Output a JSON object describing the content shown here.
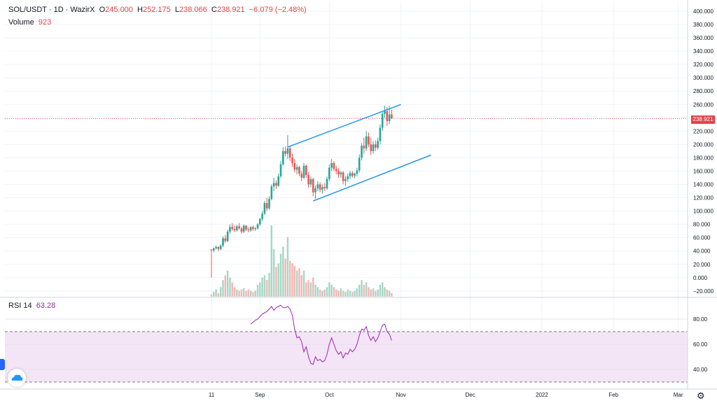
{
  "header": {
    "symbol": "SOL/USDT · 1D · WazirX",
    "open_label": "O",
    "open": "245.000",
    "high_label": "H",
    "high": "252.175",
    "low_label": "L",
    "low": "238.066",
    "close_label": "C",
    "close": "238.921",
    "change": "−6.079 (−2.48%)",
    "volume_label": "Volume",
    "volume": "923"
  },
  "rsi_pane": {
    "label": "RSI 14",
    "value": "63.28"
  },
  "last_price_tag": "238.921",
  "colors": {
    "up": "#26a69a",
    "down": "#ef5350",
    "trend": "#2196f3",
    "rsi": "#9c27b0",
    "rsi_band": "#f3e5f5",
    "price_line": "#ef5350"
  },
  "icons": {
    "logo": "tradingview-cloud-icon",
    "settings": "gear-icon",
    "panel_toggle": "side-panel-toggle-icon"
  },
  "chart_data": [
    {
      "type": "candlestick",
      "title": "SOL/USDT · 1D · WazirX",
      "y_ticks": [
        "400.000",
        "380.000",
        "360.000",
        "340.000",
        "320.000",
        "300.000",
        "280.000",
        "260.000",
        "240.000",
        "220.000",
        "200.000",
        "180.000",
        "160.000",
        "140.000",
        "120.000",
        "100.000",
        "80.000",
        "60.000",
        "40.000",
        "20.000",
        "0.000",
        "−20.000"
      ],
      "x_ticks": [
        "11",
        "Sep",
        "Oct",
        "Nov",
        "Dec",
        "2022",
        "Feb",
        "Mar"
      ],
      "ylim": [
        -22,
        400
      ],
      "x_tick_days": [
        0,
        21,
        51,
        82,
        112,
        143,
        174,
        202
      ],
      "last_price": 238.921,
      "ohlc": [
        [
          0,
          42,
          43,
          0,
          41
        ],
        [
          1,
          41,
          45,
          38,
          44
        ],
        [
          2,
          44,
          48,
          42,
          46
        ],
        [
          3,
          46,
          47,
          40,
          43
        ],
        [
          4,
          43,
          50,
          41,
          48
        ],
        [
          5,
          48,
          62,
          46,
          59
        ],
        [
          6,
          59,
          64,
          52,
          55
        ],
        [
          7,
          55,
          72,
          53,
          69
        ],
        [
          8,
          69,
          80,
          66,
          76
        ],
        [
          9,
          76,
          82,
          70,
          73
        ],
        [
          10,
          73,
          78,
          68,
          71
        ],
        [
          11,
          71,
          79,
          69,
          77
        ],
        [
          12,
          77,
          82,
          72,
          74
        ],
        [
          13,
          74,
          76,
          66,
          69
        ],
        [
          14,
          69,
          80,
          67,
          78
        ],
        [
          15,
          78,
          79,
          70,
          72
        ],
        [
          16,
          72,
          75,
          68,
          71
        ],
        [
          17,
          71,
          77,
          69,
          76
        ],
        [
          18,
          76,
          78,
          70,
          73
        ],
        [
          19,
          73,
          76,
          70,
          74
        ],
        [
          20,
          74,
          82,
          72,
          80
        ],
        [
          21,
          80,
          90,
          78,
          88
        ],
        [
          22,
          88,
          100,
          85,
          96
        ],
        [
          23,
          96,
          115,
          94,
          112
        ],
        [
          24,
          112,
          120,
          100,
          104
        ],
        [
          25,
          104,
          122,
          102,
          118
        ],
        [
          26,
          118,
          140,
          116,
          137
        ],
        [
          27,
          137,
          150,
          130,
          142
        ],
        [
          28,
          142,
          146,
          133,
          138
        ],
        [
          29,
          138,
          156,
          136,
          152
        ],
        [
          30,
          152,
          175,
          150,
          170
        ],
        [
          31,
          170,
          196,
          168,
          190
        ],
        [
          32,
          190,
          197,
          182,
          186
        ],
        [
          33,
          186,
          214,
          178,
          194
        ],
        [
          34,
          194,
          198,
          175,
          180
        ],
        [
          35,
          180,
          186,
          166,
          172
        ],
        [
          36,
          172,
          178,
          158,
          162
        ],
        [
          37,
          162,
          170,
          155,
          166
        ],
        [
          38,
          166,
          168,
          152,
          156
        ],
        [
          39,
          156,
          160,
          145,
          150
        ],
        [
          40,
          150,
          172,
          148,
          168
        ],
        [
          41,
          168,
          170,
          150,
          154
        ],
        [
          42,
          154,
          158,
          135,
          140
        ],
        [
          43,
          140,
          152,
          136,
          148
        ],
        [
          44,
          148,
          150,
          122,
          128
        ],
        [
          45,
          128,
          138,
          118,
          134
        ],
        [
          46,
          134,
          145,
          130,
          140
        ],
        [
          47,
          140,
          143,
          128,
          132
        ],
        [
          48,
          132,
          140,
          126,
          136
        ],
        [
          49,
          136,
          142,
          130,
          134
        ],
        [
          50,
          134,
          152,
          132,
          148
        ],
        [
          51,
          148,
          170,
          145,
          165
        ],
        [
          52,
          165,
          178,
          160,
          172
        ],
        [
          53,
          172,
          175,
          160,
          163
        ],
        [
          54,
          163,
          168,
          155,
          160
        ],
        [
          55,
          160,
          164,
          150,
          155
        ],
        [
          56,
          155,
          160,
          150,
          158
        ],
        [
          57,
          158,
          160,
          140,
          145
        ],
        [
          58,
          145,
          152,
          138,
          148
        ],
        [
          59,
          148,
          156,
          144,
          152
        ],
        [
          60,
          152,
          160,
          148,
          157
        ],
        [
          61,
          157,
          160,
          150,
          153
        ],
        [
          62,
          153,
          158,
          149,
          156
        ],
        [
          63,
          156,
          165,
          152,
          161
        ],
        [
          64,
          161,
          185,
          158,
          180
        ],
        [
          65,
          180,
          202,
          176,
          198
        ],
        [
          66,
          198,
          210,
          186,
          194
        ],
        [
          67,
          194,
          220,
          190,
          212
        ],
        [
          68,
          212,
          218,
          196,
          200
        ],
        [
          69,
          200,
          210,
          184,
          190
        ],
        [
          70,
          190,
          205,
          186,
          200
        ],
        [
          71,
          200,
          206,
          190,
          195
        ],
        [
          72,
          195,
          210,
          192,
          205
        ],
        [
          73,
          205,
          230,
          200,
          225
        ],
        [
          74,
          225,
          250,
          220,
          246
        ],
        [
          75,
          246,
          258,
          240,
          250
        ],
        [
          76,
          250,
          256,
          228,
          235
        ],
        [
          77,
          235,
          258,
          230,
          245
        ],
        [
          78,
          245,
          252,
          238,
          239
        ]
      ],
      "volume": [
        [
          0,
          2
        ],
        [
          1,
          4
        ],
        [
          2,
          6
        ],
        [
          3,
          3
        ],
        [
          4,
          8
        ],
        [
          5,
          14
        ],
        [
          6,
          18
        ],
        [
          7,
          22
        ],
        [
          8,
          16
        ],
        [
          9,
          12
        ],
        [
          10,
          8
        ],
        [
          11,
          6
        ],
        [
          12,
          5
        ],
        [
          13,
          6
        ],
        [
          14,
          7
        ],
        [
          15,
          5
        ],
        [
          16,
          6
        ],
        [
          17,
          5
        ],
        [
          18,
          4
        ],
        [
          19,
          5
        ],
        [
          20,
          10
        ],
        [
          21,
          12
        ],
        [
          22,
          16
        ],
        [
          23,
          18
        ],
        [
          24,
          14
        ],
        [
          25,
          20
        ],
        [
          26,
          60
        ],
        [
          27,
          40
        ],
        [
          28,
          25
        ],
        [
          29,
          28
        ],
        [
          30,
          36
        ],
        [
          31,
          42
        ],
        [
          32,
          32
        ],
        [
          33,
          50
        ],
        [
          34,
          30
        ],
        [
          35,
          28
        ],
        [
          36,
          26
        ],
        [
          37,
          22
        ],
        [
          38,
          24
        ],
        [
          39,
          18
        ],
        [
          40,
          22
        ],
        [
          41,
          12
        ],
        [
          42,
          14
        ],
        [
          43,
          12
        ],
        [
          44,
          16
        ],
        [
          45,
          10
        ],
        [
          46,
          8
        ],
        [
          47,
          6
        ],
        [
          48,
          5
        ],
        [
          49,
          6
        ],
        [
          50,
          8
        ],
        [
          51,
          12
        ],
        [
          52,
          10
        ],
        [
          53,
          8
        ],
        [
          54,
          6
        ],
        [
          55,
          5
        ],
        [
          56,
          7
        ],
        [
          57,
          5
        ],
        [
          58,
          4
        ],
        [
          59,
          6
        ],
        [
          60,
          5
        ],
        [
          61,
          4
        ],
        [
          62,
          5
        ],
        [
          63,
          7
        ],
        [
          64,
          10
        ],
        [
          65,
          14
        ],
        [
          66,
          10
        ],
        [
          67,
          12
        ],
        [
          68,
          8
        ],
        [
          69,
          6
        ],
        [
          70,
          7
        ],
        [
          71,
          5
        ],
        [
          72,
          6
        ],
        [
          73,
          10
        ],
        [
          74,
          12
        ],
        [
          75,
          8
        ],
        [
          76,
          6
        ],
        [
          77,
          5
        ],
        [
          78,
          3
        ]
      ],
      "trendlines": [
        {
          "from": [
            33,
            196
          ],
          "to": [
            82,
            260
          ]
        },
        {
          "from": [
            44,
            115
          ],
          "to": [
            95,
            184
          ]
        }
      ]
    },
    {
      "type": "line",
      "title": "RSI 14",
      "y_ticks": [
        "80.00",
        "60.00",
        "40.00"
      ],
      "ylim": [
        28,
        95
      ],
      "bands": [
        70,
        30
      ],
      "series": [
        {
          "values": [
            [
              17,
              76
            ],
            [
              19,
              79
            ],
            [
              20,
              80
            ],
            [
              22,
              84
            ],
            [
              23,
              85
            ],
            [
              24,
              86
            ],
            [
              25,
              88
            ],
            [
              26,
              90
            ],
            [
              27,
              87
            ],
            [
              28,
              89
            ],
            [
              29,
              90
            ],
            [
              30,
              91
            ],
            [
              31,
              89
            ],
            [
              32,
              89
            ],
            [
              33,
              90
            ],
            [
              34,
              88
            ],
            [
              35,
              83
            ],
            [
              36,
              72
            ],
            [
              37,
              65
            ],
            [
              38,
              66
            ],
            [
              39,
              62
            ],
            [
              40,
              54
            ],
            [
              41,
              58
            ],
            [
              42,
              50
            ],
            [
              43,
              45
            ],
            [
              44,
              44
            ],
            [
              45,
              50
            ],
            [
              46,
              47
            ],
            [
              47,
              48
            ],
            [
              48,
              46
            ],
            [
              49,
              47
            ],
            [
              50,
              52
            ],
            [
              51,
              60
            ],
            [
              52,
              65
            ],
            [
              53,
              60
            ],
            [
              54,
              55
            ],
            [
              55,
              52
            ],
            [
              56,
              54
            ],
            [
              57,
              49
            ],
            [
              58,
              53
            ],
            [
              59,
              52
            ],
            [
              60,
              56
            ],
            [
              61,
              54
            ],
            [
              62,
              56
            ],
            [
              63,
              60
            ],
            [
              64,
              67
            ],
            [
              65,
              72
            ],
            [
              66,
              71
            ],
            [
              67,
              74
            ],
            [
              68,
              67
            ],
            [
              69,
              63
            ],
            [
              70,
              66
            ],
            [
              71,
              62
            ],
            [
              72,
              65
            ],
            [
              73,
              70
            ],
            [
              74,
              75
            ],
            [
              75,
              76
            ],
            [
              76,
              70
            ],
            [
              77,
              68
            ],
            [
              78,
              63
            ]
          ]
        }
      ]
    }
  ]
}
